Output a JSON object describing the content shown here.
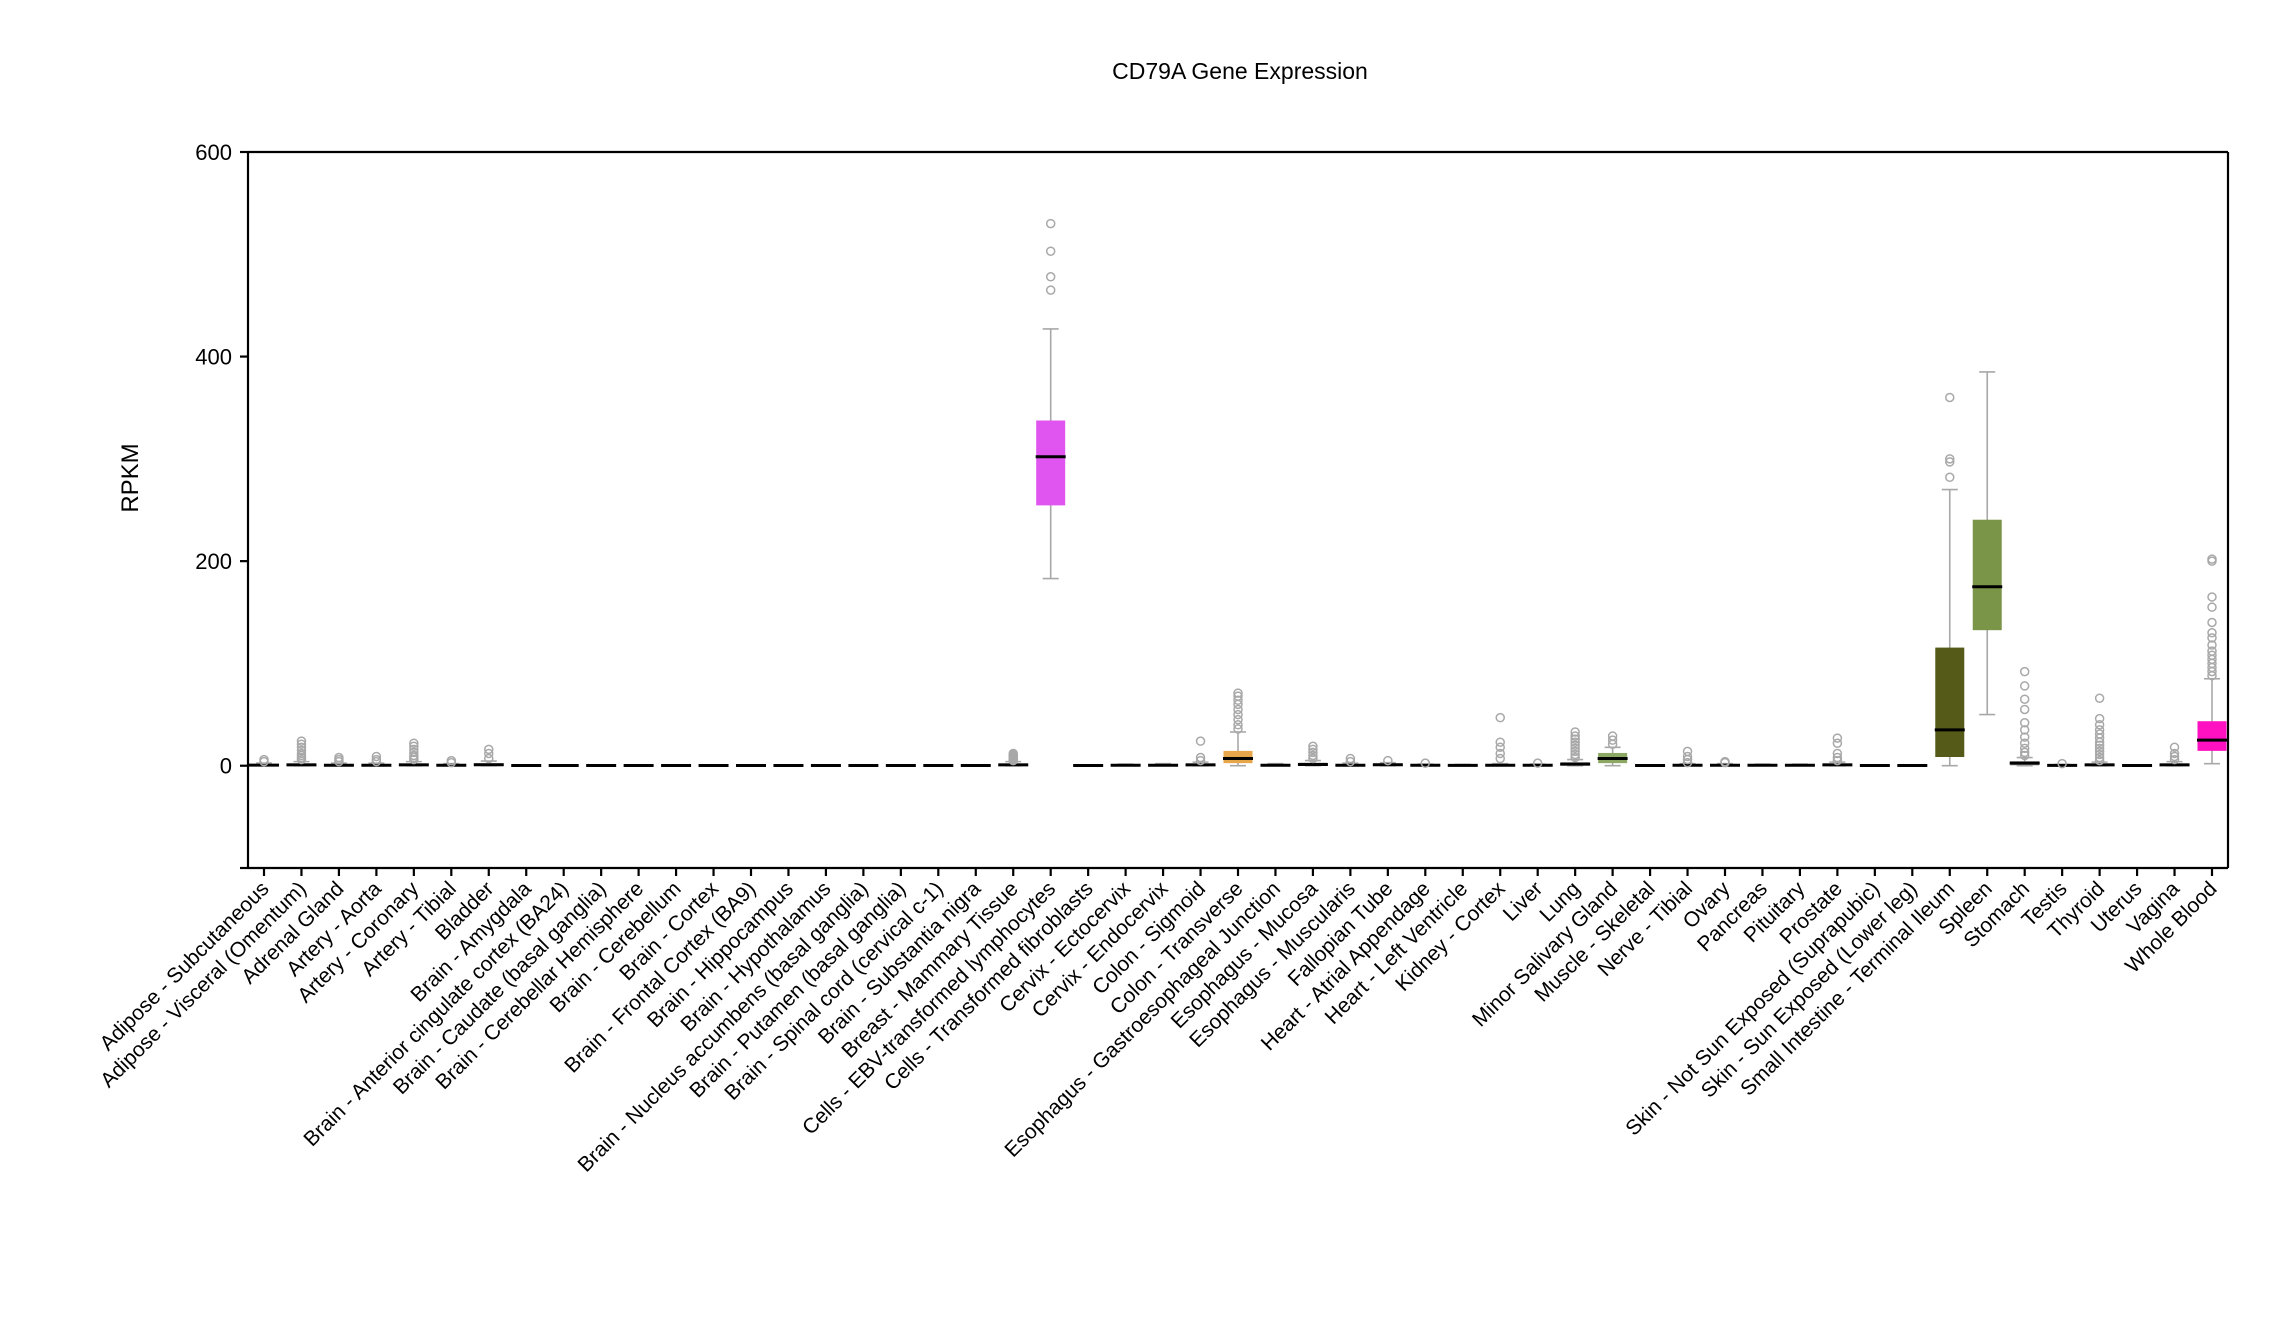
{
  "chart_data": {
    "type": "box",
    "title": "CD79A Gene Expression",
    "xlabel": "",
    "ylabel": "RPKM",
    "ylim": [
      -100,
      600
    ],
    "yticks": [
      0,
      200,
      400,
      600
    ],
    "grid": false,
    "colors": {
      "default_box": "#a0a0a0",
      "cells_ebv": "#e055f0",
      "colon_transverse": "#e8a64a",
      "minor_salivary": "#8da862",
      "small_intestine": "#565a18",
      "spleen": "#7a9448",
      "whole_blood": "#ff10c0",
      "whisker": "#a8a8a8",
      "outlier": "#a8a8a8",
      "median": "#000000"
    },
    "categories": [
      "Adipose - Subcutaneous",
      "Adipose - Visceral (Omentum)",
      "Adrenal Gland",
      "Artery - Aorta",
      "Artery - Coronary",
      "Artery - Tibial",
      "Bladder",
      "Brain - Amygdala",
      "Brain - Anterior cingulate cortex (BA24)",
      "Brain - Caudate (basal ganglia)",
      "Brain - Cerebellar Hemisphere",
      "Brain - Cerebellum",
      "Brain - Cortex",
      "Brain - Frontal Cortex (BA9)",
      "Brain - Hippocampus",
      "Brain - Hypothalamus",
      "Brain - Nucleus accumbens (basal ganglia)",
      "Brain - Putamen (basal ganglia)",
      "Brain - Spinal cord (cervical c-1)",
      "Brain - Substantia nigra",
      "Breast - Mammary Tissue",
      "Cells - EBV-transformed lymphocytes",
      "Cells - Transformed fibroblasts",
      "Cervix - Ectocervix",
      "Cervix - Endocervix",
      "Colon - Sigmoid",
      "Colon - Transverse",
      "Esophagus - Gastroesophageal Junction",
      "Esophagus - Mucosa",
      "Esophagus - Muscularis",
      "Fallopian Tube",
      "Heart - Atrial Appendage",
      "Heart - Left Ventricle",
      "Kidney - Cortex",
      "Liver",
      "Lung",
      "Minor Salivary Gland",
      "Muscle - Skeletal",
      "Nerve - Tibial",
      "Ovary",
      "Pancreas",
      "Pituitary",
      "Prostate",
      "Skin - Not Sun Exposed (Suprapubic)",
      "Skin - Sun Exposed (Lower leg)",
      "Small Intestine - Terminal Ileum",
      "Spleen",
      "Stomach",
      "Testis",
      "Thyroid",
      "Uterus",
      "Vagina",
      "Whole Blood"
    ],
    "boxes": [
      {
        "min": 0,
        "q1": 0.2,
        "median": 0.6,
        "q3": 1.2,
        "max": 2.5,
        "outliers": [
          4,
          6
        ],
        "color": "default_box"
      },
      {
        "min": 0,
        "q1": 0.3,
        "median": 0.8,
        "q3": 1.8,
        "max": 4,
        "outliers": [
          6,
          8,
          10,
          12,
          15,
          18,
          21,
          24
        ],
        "color": "default_box"
      },
      {
        "min": 0,
        "q1": 0.2,
        "median": 0.5,
        "q3": 1.2,
        "max": 2.5,
        "outliers": [
          4,
          6,
          8
        ],
        "color": "default_box"
      },
      {
        "min": 0,
        "q1": 0.2,
        "median": 0.5,
        "q3": 1.2,
        "max": 2.5,
        "outliers": [
          4,
          6,
          9
        ],
        "color": "default_box"
      },
      {
        "min": 0,
        "q1": 0.3,
        "median": 0.8,
        "q3": 1.8,
        "max": 4,
        "outliers": [
          6,
          8,
          10,
          13,
          16,
          19,
          22
        ],
        "color": "default_box"
      },
      {
        "min": 0,
        "q1": 0.2,
        "median": 0.4,
        "q3": 1,
        "max": 2,
        "outliers": [
          3,
          5
        ],
        "color": "default_box"
      },
      {
        "min": 0,
        "q1": 0.4,
        "median": 1,
        "q3": 2,
        "max": 4.5,
        "outliers": [
          7,
          12,
          16
        ],
        "color": "default_box"
      },
      {
        "min": 0,
        "q1": 0.1,
        "median": 0.2,
        "q3": 0.4,
        "max": 0.8,
        "outliers": [],
        "color": "default_box"
      },
      {
        "min": 0,
        "q1": 0.1,
        "median": 0.2,
        "q3": 0.4,
        "max": 0.8,
        "outliers": [],
        "color": "default_box"
      },
      {
        "min": 0,
        "q1": 0.1,
        "median": 0.2,
        "q3": 0.4,
        "max": 0.8,
        "outliers": [],
        "color": "default_box"
      },
      {
        "min": 0,
        "q1": 0.1,
        "median": 0.2,
        "q3": 0.4,
        "max": 0.8,
        "outliers": [],
        "color": "default_box"
      },
      {
        "min": 0,
        "q1": 0.1,
        "median": 0.2,
        "q3": 0.4,
        "max": 0.8,
        "outliers": [],
        "color": "default_box"
      },
      {
        "min": 0,
        "q1": 0.1,
        "median": 0.2,
        "q3": 0.4,
        "max": 0.8,
        "outliers": [],
        "color": "default_box"
      },
      {
        "min": 0,
        "q1": 0.1,
        "median": 0.2,
        "q3": 0.4,
        "max": 0.8,
        "outliers": [],
        "color": "default_box"
      },
      {
        "min": 0,
        "q1": 0.1,
        "median": 0.2,
        "q3": 0.4,
        "max": 0.8,
        "outliers": [],
        "color": "default_box"
      },
      {
        "min": 0,
        "q1": 0.1,
        "median": 0.2,
        "q3": 0.4,
        "max": 0.8,
        "outliers": [],
        "color": "default_box"
      },
      {
        "min": 0,
        "q1": 0.1,
        "median": 0.2,
        "q3": 0.4,
        "max": 0.8,
        "outliers": [],
        "color": "default_box"
      },
      {
        "min": 0,
        "q1": 0.1,
        "median": 0.2,
        "q3": 0.4,
        "max": 0.8,
        "outliers": [],
        "color": "default_box"
      },
      {
        "min": 0,
        "q1": 0.1,
        "median": 0.2,
        "q3": 0.4,
        "max": 0.8,
        "outliers": [],
        "color": "default_box"
      },
      {
        "min": 0,
        "q1": 0.1,
        "median": 0.2,
        "q3": 0.4,
        "max": 0.8,
        "outliers": [],
        "color": "default_box"
      },
      {
        "min": 0,
        "q1": 0.3,
        "median": 0.8,
        "q3": 1.8,
        "max": 4,
        "outliers": [
          5,
          6,
          7,
          8,
          9,
          10,
          11,
          12
        ],
        "color": "default_box"
      },
      {
        "min": 183,
        "q1": 255,
        "median": 302,
        "q3": 337,
        "max": 427,
        "outliers": [
          465,
          478,
          503,
          530
        ],
        "color": "cells_ebv"
      },
      {
        "min": 0,
        "q1": 0.1,
        "median": 0.2,
        "q3": 0.4,
        "max": 0.8,
        "outliers": [],
        "color": "default_box"
      },
      {
        "min": 0,
        "q1": 0.2,
        "median": 0.4,
        "q3": 0.8,
        "max": 1.5,
        "outliers": [],
        "color": "default_box"
      },
      {
        "min": 0,
        "q1": 0.2,
        "median": 0.5,
        "q3": 1,
        "max": 2,
        "outliers": [],
        "color": "default_box"
      },
      {
        "min": 0,
        "q1": 0.3,
        "median": 0.8,
        "q3": 1.8,
        "max": 3.5,
        "outliers": [
          5,
          8,
          24
        ],
        "color": "default_box"
      },
      {
        "min": 0,
        "q1": 3,
        "median": 7,
        "q3": 14,
        "max": 33,
        "outliers": [
          36,
          40,
          45,
          50,
          55,
          60,
          64,
          68,
          71
        ],
        "color": "colon_transverse"
      },
      {
        "min": 0,
        "q1": 0.2,
        "median": 0.5,
        "q3": 1,
        "max": 2,
        "outliers": [],
        "color": "default_box"
      },
      {
        "min": 0,
        "q1": 0.4,
        "median": 1.2,
        "q3": 2.5,
        "max": 5,
        "outliers": [
          7,
          10,
          13,
          16,
          19
        ],
        "color": "default_box"
      },
      {
        "min": 0,
        "q1": 0.2,
        "median": 0.5,
        "q3": 1.2,
        "max": 2.5,
        "outliers": [
          4,
          7
        ],
        "color": "default_box"
      },
      {
        "min": 0,
        "q1": 0.4,
        "median": 1,
        "q3": 1.8,
        "max": 3,
        "outliers": [
          5
        ],
        "color": "default_box"
      },
      {
        "min": 0,
        "q1": 0.2,
        "median": 0.4,
        "q3": 0.8,
        "max": 1.5,
        "outliers": [
          2.5
        ],
        "color": "default_box"
      },
      {
        "min": 0,
        "q1": 0.1,
        "median": 0.3,
        "q3": 0.6,
        "max": 1.2,
        "outliers": [],
        "color": "default_box"
      },
      {
        "min": 0,
        "q1": 0.2,
        "median": 0.5,
        "q3": 1,
        "max": 2,
        "outliers": [
          7,
          12,
          18,
          23,
          47
        ],
        "color": "default_box"
      },
      {
        "min": 0,
        "q1": 0.2,
        "median": 0.4,
        "q3": 0.8,
        "max": 1.5,
        "outliers": [
          2.5
        ],
        "color": "default_box"
      },
      {
        "min": 0,
        "q1": 0.5,
        "median": 1.5,
        "q3": 3,
        "max": 6,
        "outliers": [
          8,
          11,
          14,
          17,
          20,
          23,
          26,
          29,
          33
        ],
        "color": "default_box"
      },
      {
        "min": 0,
        "q1": 3,
        "median": 7,
        "q3": 12,
        "max": 18,
        "outliers": [
          21,
          25,
          29
        ],
        "color": "minor_salivary"
      },
      {
        "min": 0,
        "q1": 0.1,
        "median": 0.2,
        "q3": 0.4,
        "max": 0.8,
        "outliers": [],
        "color": "default_box"
      },
      {
        "min": 0,
        "q1": 0.2,
        "median": 0.5,
        "q3": 1,
        "max": 2,
        "outliers": [
          3,
          6,
          9,
          14
        ],
        "color": "default_box"
      },
      {
        "min": 0,
        "q1": 0.2,
        "median": 0.5,
        "q3": 1,
        "max": 2,
        "outliers": [
          3,
          4
        ],
        "color": "default_box"
      },
      {
        "min": 0,
        "q1": 0.2,
        "median": 0.4,
        "q3": 0.8,
        "max": 1.5,
        "outliers": [],
        "color": "default_box"
      },
      {
        "min": 0,
        "q1": 0.2,
        "median": 0.4,
        "q3": 0.8,
        "max": 1.5,
        "outliers": [],
        "color": "default_box"
      },
      {
        "min": 0,
        "q1": 0.3,
        "median": 0.8,
        "q3": 1.8,
        "max": 3.5,
        "outliers": [
          5,
          8,
          12,
          22,
          27
        ],
        "color": "default_box"
      },
      {
        "min": 0,
        "q1": 0.1,
        "median": 0.2,
        "q3": 0.4,
        "max": 0.8,
        "outliers": [],
        "color": "default_box"
      },
      {
        "min": 0,
        "q1": 0.1,
        "median": 0.2,
        "q3": 0.4,
        "max": 0.8,
        "outliers": [],
        "color": "default_box"
      },
      {
        "min": 0,
        "q1": 9,
        "median": 35,
        "q3": 115,
        "max": 270,
        "outliers": [
          282,
          297,
          300,
          360
        ],
        "color": "small_intestine"
      },
      {
        "min": 50,
        "q1": 133,
        "median": 175,
        "q3": 240,
        "max": 385,
        "outliers": [],
        "color": "spleen"
      },
      {
        "min": 0,
        "q1": 0.8,
        "median": 2.5,
        "q3": 4,
        "max": 8,
        "outliers": [
          10,
          13,
          17,
          22,
          28,
          35,
          42,
          55,
          65,
          78,
          92
        ],
        "color": "default_box"
      },
      {
        "min": 0,
        "q1": 0.1,
        "median": 0.3,
        "q3": 0.6,
        "max": 1.2,
        "outliers": [
          2
        ],
        "color": "default_box"
      },
      {
        "min": 0,
        "q1": 0.3,
        "median": 0.8,
        "q3": 1.8,
        "max": 3.5,
        "outliers": [
          5,
          8,
          11,
          14,
          17,
          20,
          23,
          27,
          31,
          35,
          40,
          46,
          66
        ],
        "color": "default_box"
      },
      {
        "min": 0,
        "q1": 0.1,
        "median": 0.2,
        "q3": 0.4,
        "max": 0.8,
        "outliers": [],
        "color": "default_box"
      },
      {
        "min": 0,
        "q1": 0.3,
        "median": 0.8,
        "q3": 1.8,
        "max": 4,
        "outliers": [
          6,
          9,
          12,
          18
        ],
        "color": "default_box"
      },
      {
        "min": 2,
        "q1": 15,
        "median": 25,
        "q3": 43,
        "max": 85,
        "outliers": [
          88,
          92,
          96,
          100,
          104,
          108,
          112,
          118,
          125,
          130,
          140,
          155,
          165,
          200,
          202
        ],
        "color": "whole_blood"
      }
    ]
  }
}
